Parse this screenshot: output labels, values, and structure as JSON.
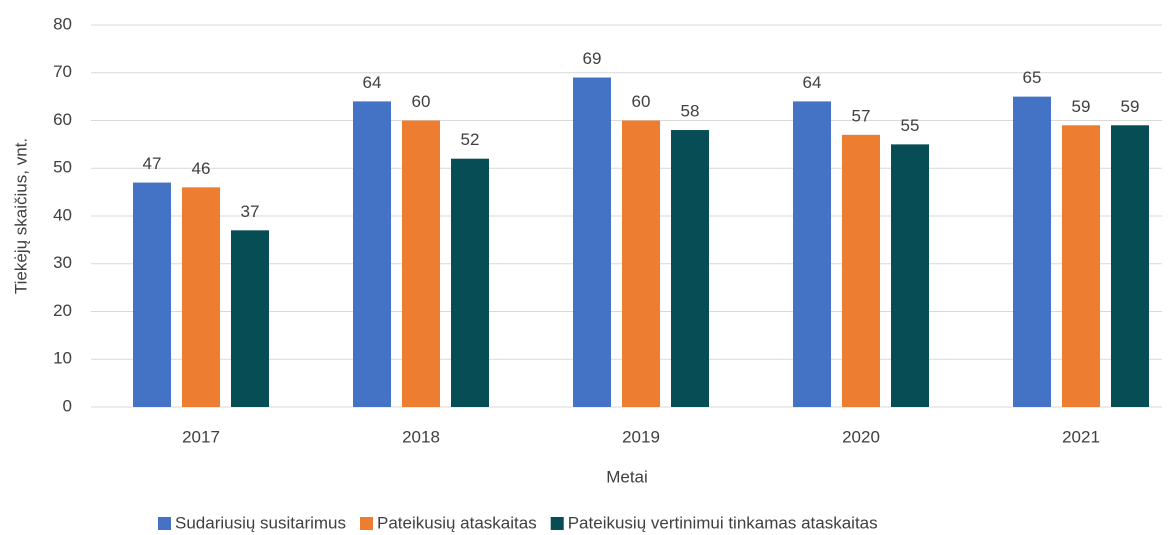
{
  "chart_data": {
    "type": "bar",
    "xlabel": "Metai",
    "ylabel": "Tiekėjų skaičius, vnt.",
    "categories": [
      "2017",
      "2018",
      "2019",
      "2020",
      "2021"
    ],
    "series": [
      {
        "name": "Sudariusių susitarimus",
        "color": "#4472c4",
        "values": [
          47,
          64,
          69,
          64,
          65
        ]
      },
      {
        "name": "Pateikusių ataskaitas",
        "color": "#ed7d31",
        "values": [
          46,
          60,
          60,
          57,
          59
        ]
      },
      {
        "name": "Pateikusių vertinimui tinkamas ataskaitas",
        "color": "#064d55",
        "values": [
          37,
          52,
          58,
          55,
          59
        ]
      }
    ],
    "ylim": [
      0,
      80
    ],
    "yticks": [
      0,
      10,
      20,
      30,
      40,
      50,
      60,
      70,
      80
    ],
    "grid": true,
    "legend": "bottom"
  }
}
